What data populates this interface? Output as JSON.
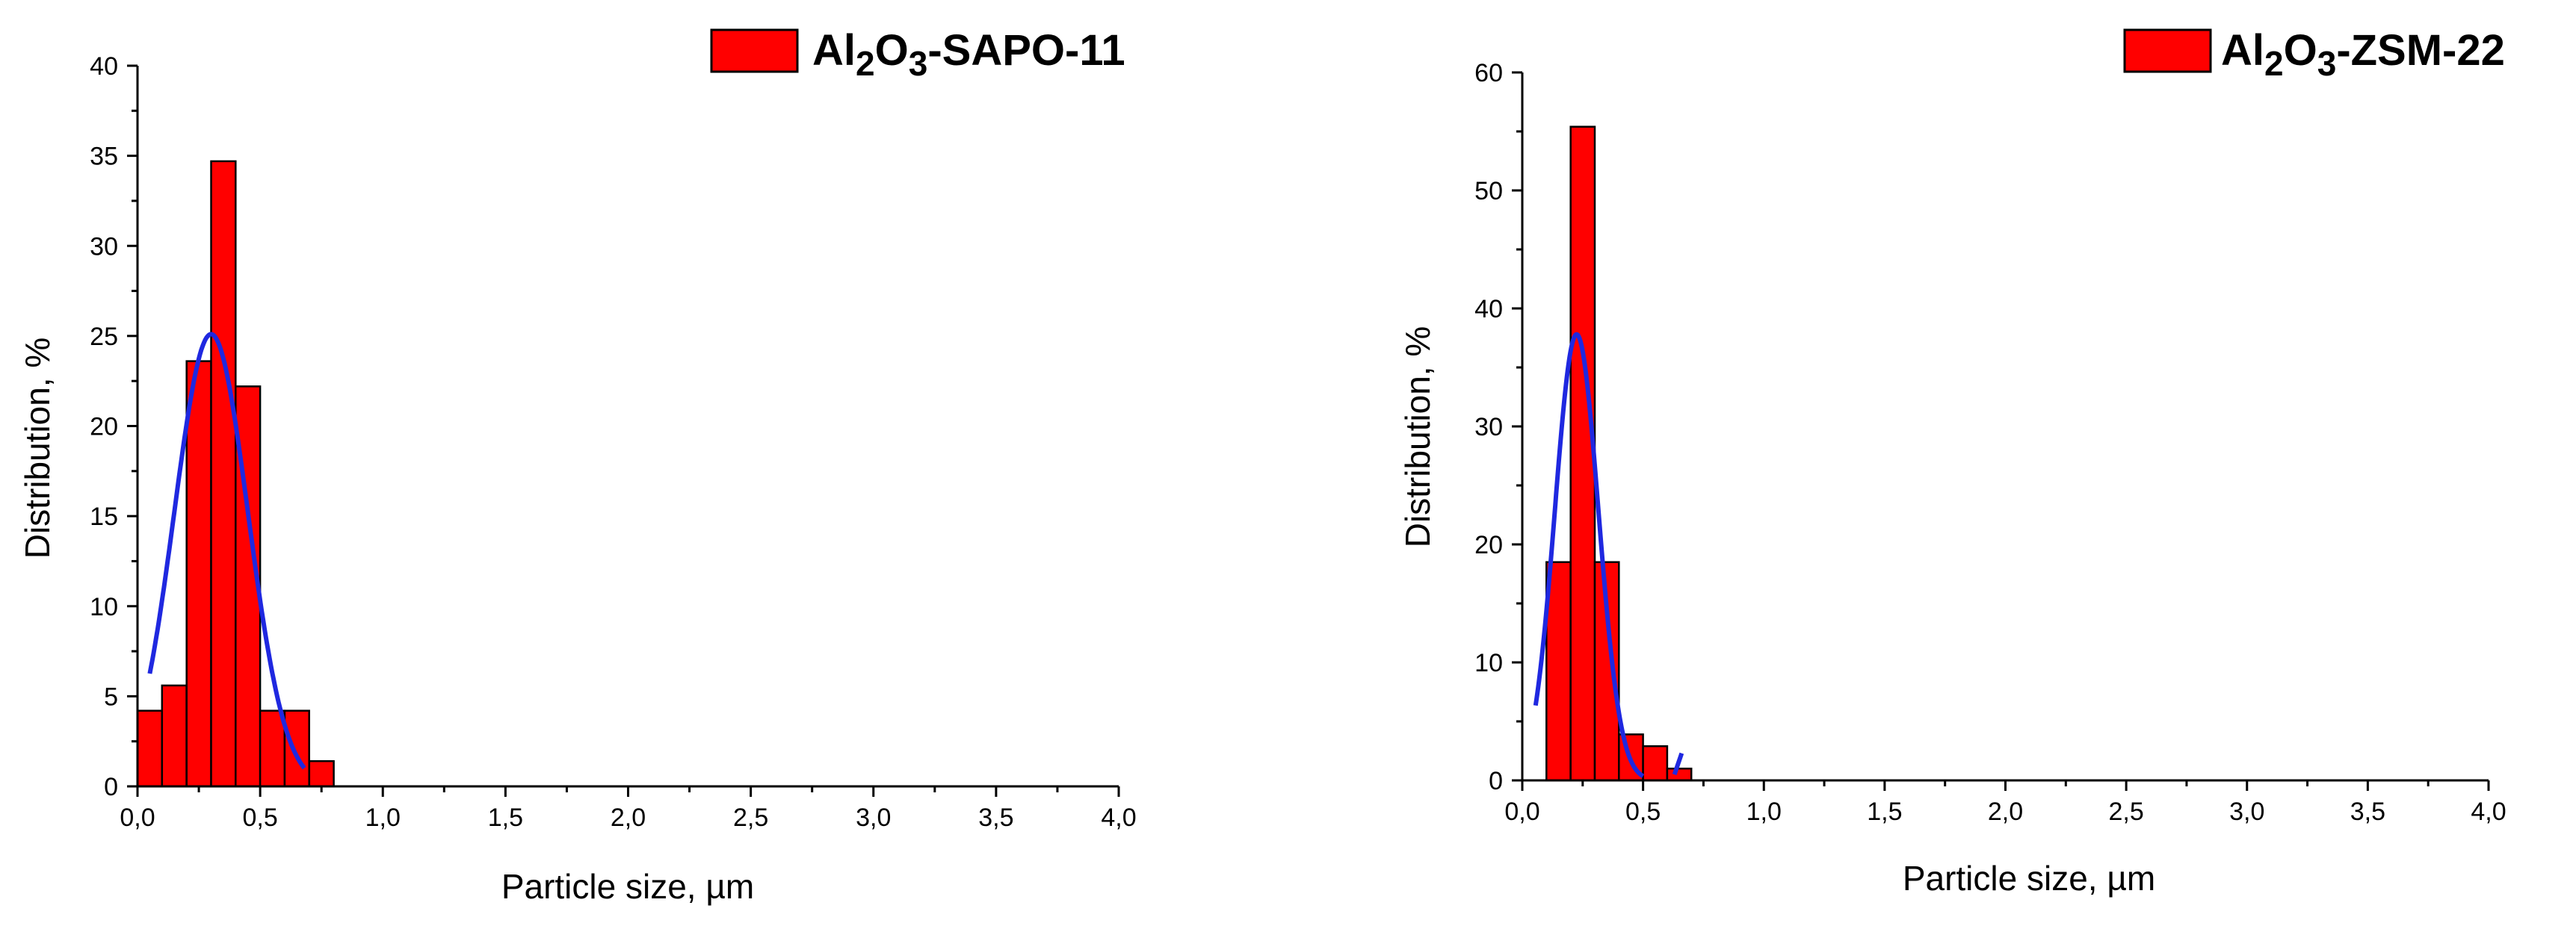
{
  "chart_data": [
    {
      "type": "bar",
      "legend": {
        "label_prefix": "Al",
        "sub1": "2",
        "mid": "O",
        "sub2": "3",
        "label_suffix": "-SAPO-11",
        "position": "top-right"
      },
      "xlabel": "Particle size, µm",
      "ylabel": "Distribution, %",
      "xlim": [
        0,
        4.0
      ],
      "ylim": [
        0,
        40
      ],
      "x_ticks": [
        "0,0",
        "0,5",
        "1,0",
        "1,5",
        "2,0",
        "2,5",
        "3,0",
        "3,5",
        "4,0"
      ],
      "x_tick_values": [
        0,
        0.5,
        1.0,
        1.5,
        2.0,
        2.5,
        3.0,
        3.5,
        4.0
      ],
      "y_ticks": [
        "0",
        "5",
        "10",
        "15",
        "20",
        "25",
        "30",
        "35",
        "40"
      ],
      "y_tick_values": [
        0,
        5,
        10,
        15,
        20,
        25,
        30,
        35,
        40
      ],
      "bin_width": 0.1,
      "bins": [
        {
          "x": 0.05,
          "value": 4.2
        },
        {
          "x": 0.15,
          "value": 5.6
        },
        {
          "x": 0.25,
          "value": 23.6
        },
        {
          "x": 0.35,
          "value": 34.7
        },
        {
          "x": 0.45,
          "value": 22.2
        },
        {
          "x": 0.55,
          "value": 4.2
        },
        {
          "x": 0.65,
          "value": 4.2
        },
        {
          "x": 0.75,
          "value": 1.4
        }
      ],
      "fit": {
        "type": "gaussian",
        "center": 0.3,
        "sigma": 0.15,
        "peak": 25.1,
        "x_range": [
          0.05,
          0.68
        ]
      },
      "colors": {
        "bar": "#ff0000",
        "fit": "#1f28e0"
      }
    },
    {
      "type": "bar",
      "legend": {
        "label_prefix": "Al",
        "sub1": "2",
        "mid": "O",
        "sub2": "3",
        "label_suffix": "-ZSM-22",
        "position": "top-right"
      },
      "xlabel": "Particle size, µm",
      "ylabel": "Distribution, %",
      "xlim": [
        0,
        4.0
      ],
      "ylim": [
        0,
        60
      ],
      "x_ticks": [
        "0,0",
        "0,5",
        "1,0",
        "1,5",
        "2,0",
        "2,5",
        "3,0",
        "3,5",
        "4,0"
      ],
      "x_tick_values": [
        0,
        0.5,
        1.0,
        1.5,
        2.0,
        2.5,
        3.0,
        3.5,
        4.0
      ],
      "y_ticks": [
        "0",
        "10",
        "20",
        "30",
        "40",
        "50",
        "60"
      ],
      "y_tick_values": [
        0,
        10,
        20,
        30,
        40,
        50,
        60
      ],
      "bin_width": 0.1,
      "bins": [
        {
          "x": 0.15,
          "value": 18.5
        },
        {
          "x": 0.25,
          "value": 55.4
        },
        {
          "x": 0.35,
          "value": 18.5
        },
        {
          "x": 0.45,
          "value": 3.9
        },
        {
          "x": 0.55,
          "value": 2.9
        },
        {
          "x": 0.65,
          "value": 1.0
        }
      ],
      "fit": {
        "type": "gaussian",
        "center": 0.225,
        "sigma": 0.09,
        "peak": 37.8,
        "x_range": [
          0.055,
          0.5
        ]
      },
      "fit_tail": {
        "x": [
          0.63,
          0.66
        ],
        "y": [
          0.5,
          2.3
        ]
      },
      "colors": {
        "bar": "#ff0000",
        "fit": "#1f28e0"
      }
    }
  ]
}
